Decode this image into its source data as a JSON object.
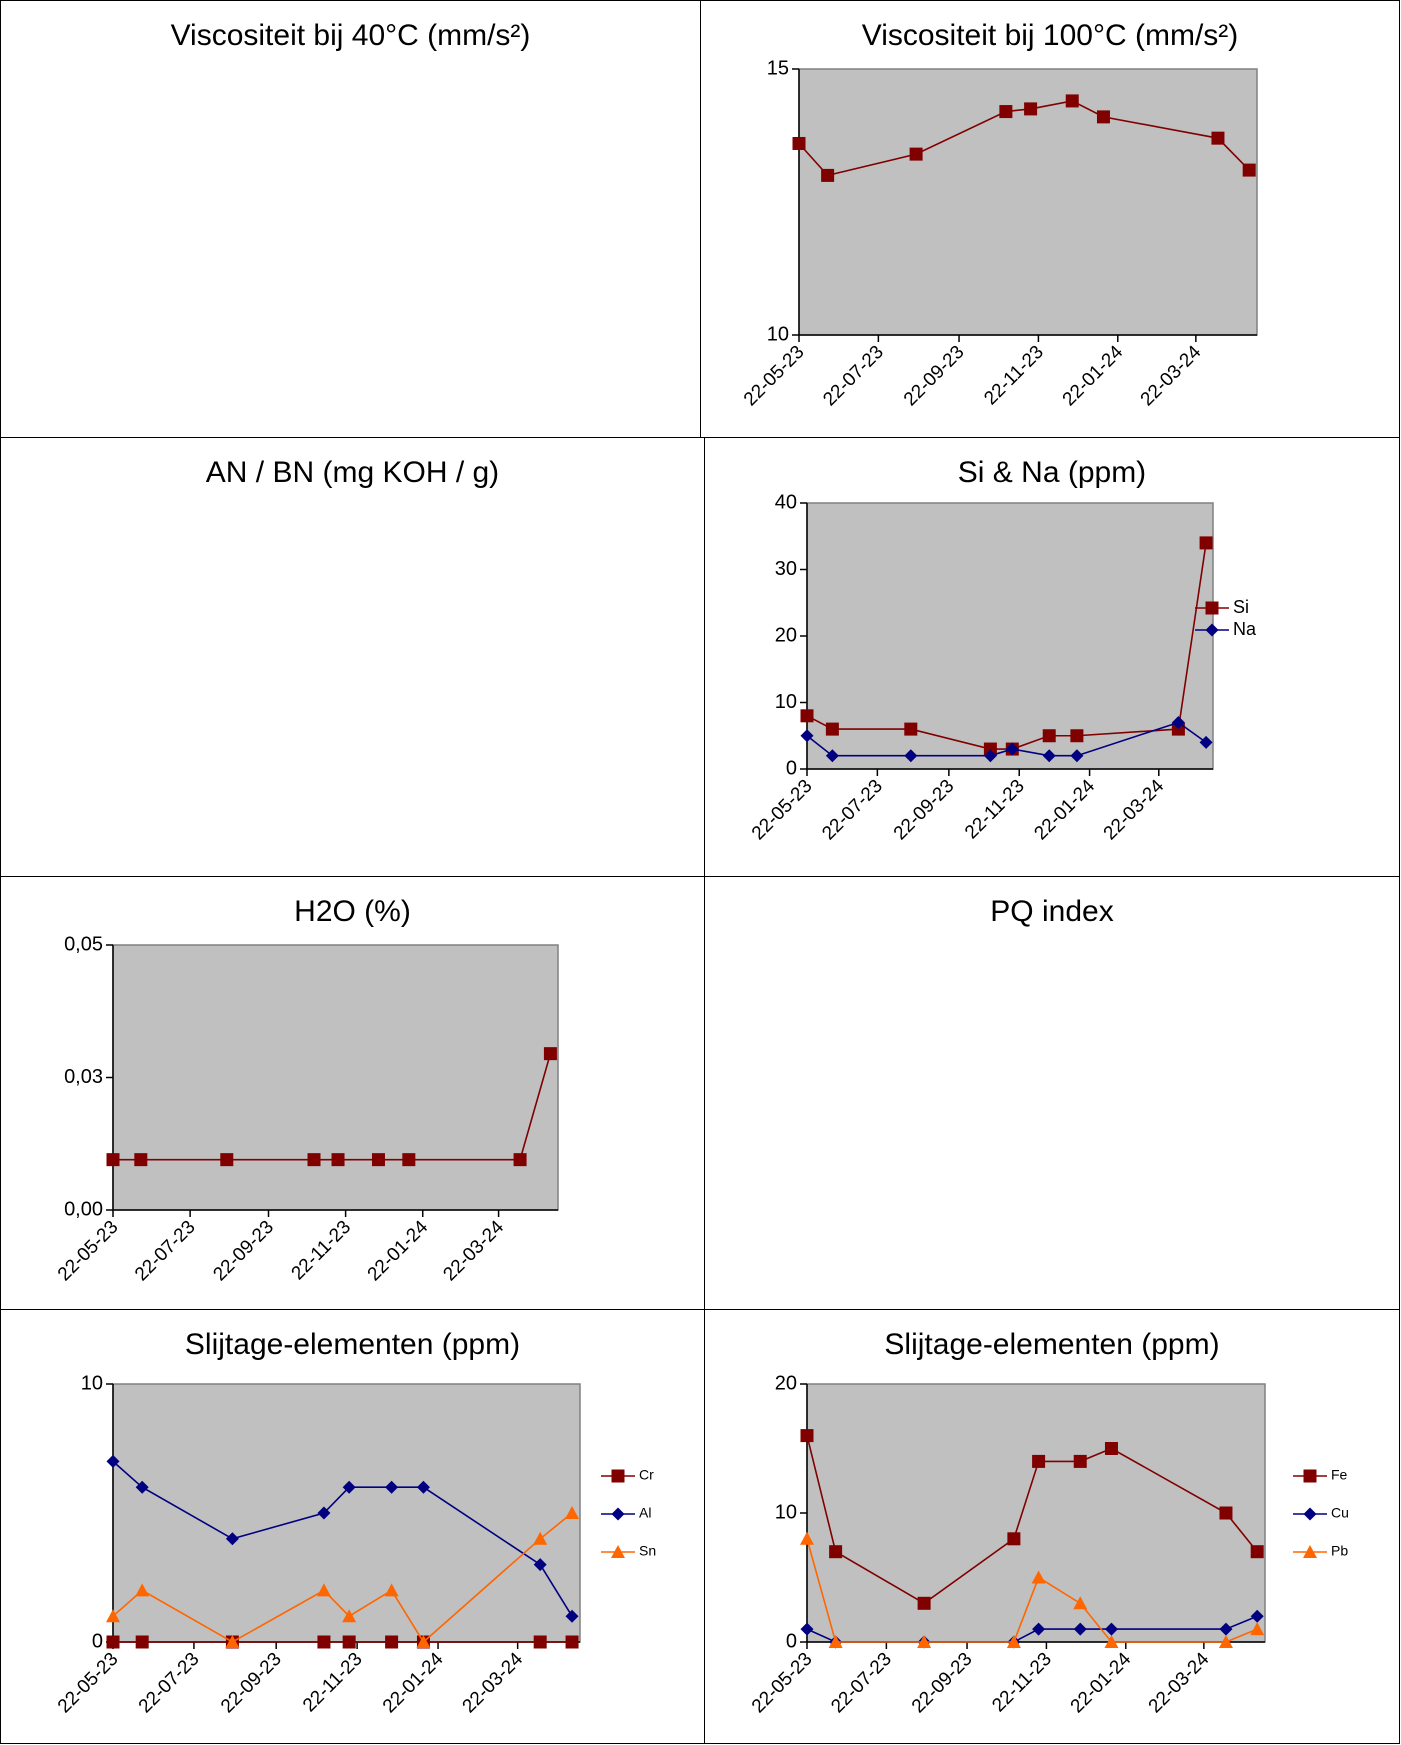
{
  "colors": {
    "dark_red": "#800000",
    "navy": "#000080",
    "orange": "#ff6600",
    "plot_bg": "#c0c0c0"
  },
  "x_ticks": [
    "22-05-23",
    "22-07-23",
    "22-09-23",
    "22-11-23",
    "22-01-24",
    "22-03-24"
  ],
  "charts": {
    "visc40": {
      "title": "Viscositeit bij 40°C (mm/s²)"
    },
    "visc100": {
      "title": "Viscositeit bij 100°C (mm/s²)"
    },
    "anbn": {
      "title": "AN / BN (mg KOH / g)"
    },
    "sina": {
      "title": "Si & Na (ppm)"
    },
    "h2o": {
      "title": "H2O (%)"
    },
    "pq": {
      "title": "PQ index"
    },
    "wear1": {
      "title": "Slijtage-elementen (ppm)"
    },
    "wear2": {
      "title": "Slijtage-elementen (ppm)"
    }
  },
  "chart_data": [
    {
      "id": "visc100",
      "type": "line",
      "title": "Viscositeit bij 100°C (mm/s²)",
      "x_type": "date",
      "xlim": [
        "2023-05-22",
        "2024-05-08"
      ],
      "ylim": [
        10,
        15
      ],
      "yticks": [
        "10",
        "15"
      ],
      "ytick_values": [
        10,
        15
      ],
      "xticks": [
        "22-05-23",
        "22-07-23",
        "22-09-23",
        "22-11-23",
        "22-01-24",
        "22-03-24"
      ],
      "legend": "none",
      "grid": false,
      "series": [
        {
          "color": "#800000",
          "marker": "square",
          "x": [
            "2023-05-22",
            "2023-06-13",
            "2023-08-20",
            "2023-10-28",
            "2023-11-16",
            "2023-12-18",
            "2024-01-11",
            "2024-04-08",
            "2024-05-02"
          ],
          "values": [
            13.6,
            13.0,
            13.4,
            14.2,
            14.25,
            14.4,
            14.1,
            13.7,
            13.1
          ]
        }
      ]
    },
    {
      "id": "sina",
      "type": "line",
      "title": "Si & Na (ppm)",
      "x_type": "date",
      "xlim": [
        "2023-05-22",
        "2024-05-08"
      ],
      "ylim": [
        0,
        40
      ],
      "yticks": [
        "0",
        "10",
        "20",
        "30",
        "40"
      ],
      "ytick_values": [
        0,
        10,
        20,
        30,
        40
      ],
      "xticks": [
        "22-05-23",
        "22-07-23",
        "22-09-23",
        "22-11-23",
        "22-01-24",
        "22-03-24"
      ],
      "legend": "right",
      "grid": false,
      "series": [
        {
          "name": "Si",
          "color": "#800000",
          "marker": "square",
          "x": [
            "2023-05-22",
            "2023-06-13",
            "2023-08-20",
            "2023-10-28",
            "2023-11-16",
            "2023-12-18",
            "2024-01-11",
            "2024-04-08",
            "2024-05-02"
          ],
          "values": [
            8,
            6,
            6,
            3,
            3,
            5,
            5,
            6,
            34
          ]
        },
        {
          "name": "Na",
          "color": "#000080",
          "marker": "diamond",
          "x": [
            "2023-05-22",
            "2023-06-13",
            "2023-08-20",
            "2023-10-28",
            "2023-11-16",
            "2023-12-18",
            "2024-01-11",
            "2024-04-08",
            "2024-05-02"
          ],
          "values": [
            5,
            2,
            2,
            2,
            3,
            2,
            2,
            7,
            4
          ]
        }
      ]
    },
    {
      "id": "h2o",
      "type": "line",
      "title": "H2O (%)",
      "x_type": "date",
      "xlim": [
        "2023-05-22",
        "2024-05-08"
      ],
      "ylim": [
        0,
        0.05
      ],
      "yticks": [
        "0,00",
        "0,03",
        "0,05"
      ],
      "ytick_values": [
        0,
        0.025,
        0.05
      ],
      "xticks": [
        "22-05-23",
        "22-07-23",
        "22-09-23",
        "22-11-23",
        "22-01-24",
        "22-03-24"
      ],
      "legend": "none",
      "grid": false,
      "series": [
        {
          "color": "#800000",
          "marker": "square",
          "x": [
            "2023-05-22",
            "2023-06-13",
            "2023-08-20",
            "2023-10-28",
            "2023-11-16",
            "2023-12-18",
            "2024-01-11",
            "2024-04-08",
            "2024-05-02"
          ],
          "values": [
            0.0095,
            0.0095,
            0.0095,
            0.0095,
            0.0095,
            0.0095,
            0.0095,
            0.0095,
            0.0295
          ]
        }
      ]
    },
    {
      "id": "wear1",
      "type": "line",
      "title": "Slijtage-elementen (ppm)",
      "x_type": "date",
      "xlim": [
        "2023-05-22",
        "2024-05-08"
      ],
      "ylim": [
        0,
        10
      ],
      "yticks": [
        "0",
        "10"
      ],
      "ytick_values": [
        0,
        10
      ],
      "xticks": [
        "22-05-23",
        "22-07-23",
        "22-09-23",
        "22-11-23",
        "22-01-24",
        "22-03-24"
      ],
      "legend": "right",
      "grid": false,
      "series": [
        {
          "name": "Cr",
          "color": "#800000",
          "marker": "square",
          "x": [
            "2023-05-22",
            "2023-06-13",
            "2023-08-20",
            "2023-10-28",
            "2023-11-16",
            "2023-12-18",
            "2024-01-11",
            "2024-04-08",
            "2024-05-02"
          ],
          "values": [
            0,
            0,
            0,
            0,
            0,
            0,
            0,
            0,
            0
          ]
        },
        {
          "name": "Al",
          "color": "#000080",
          "marker": "diamond",
          "x": [
            "2023-05-22",
            "2023-06-13",
            "2023-08-20",
            "2023-10-28",
            "2023-11-16",
            "2023-12-18",
            "2024-01-11",
            "2024-04-08",
            "2024-05-02"
          ],
          "values": [
            7,
            6,
            4,
            5,
            6,
            6,
            6,
            3,
            1
          ]
        },
        {
          "name": "Sn",
          "color": "#ff6600",
          "marker": "triangle",
          "x": [
            "2023-05-22",
            "2023-06-13",
            "2023-08-20",
            "2023-10-28",
            "2023-11-16",
            "2023-12-18",
            "2024-01-11",
            "2024-04-08",
            "2024-05-02"
          ],
          "values": [
            1,
            2,
            0,
            2,
            1,
            2,
            0,
            4,
            5
          ]
        }
      ]
    },
    {
      "id": "wear2",
      "type": "line",
      "title": "Slijtage-elementen (ppm)",
      "x_type": "date",
      "xlim": [
        "2023-05-22",
        "2024-05-08"
      ],
      "ylim": [
        0,
        20
      ],
      "yticks": [
        "0",
        "10",
        "20"
      ],
      "ytick_values": [
        0,
        10,
        20
      ],
      "xticks": [
        "22-05-23",
        "22-07-23",
        "22-09-23",
        "22-11-23",
        "22-01-24",
        "22-03-24"
      ],
      "legend": "right",
      "grid": false,
      "series": [
        {
          "name": "Fe",
          "color": "#800000",
          "marker": "square",
          "x": [
            "2023-05-22",
            "2023-06-13",
            "2023-08-20",
            "2023-10-28",
            "2023-11-16",
            "2023-12-18",
            "2024-01-11",
            "2024-04-08",
            "2024-05-02"
          ],
          "values": [
            16,
            7,
            3,
            8,
            14,
            14,
            15,
            10,
            7
          ]
        },
        {
          "name": "Cu",
          "color": "#000080",
          "marker": "diamond",
          "x": [
            "2023-05-22",
            "2023-06-13",
            "2023-08-20",
            "2023-10-28",
            "2023-11-16",
            "2023-12-18",
            "2024-01-11",
            "2024-04-08",
            "2024-05-02"
          ],
          "values": [
            1,
            0,
            0,
            0,
            1,
            1,
            1,
            1,
            2
          ]
        },
        {
          "name": "Pb",
          "color": "#ff6600",
          "marker": "triangle",
          "x": [
            "2023-05-22",
            "2023-06-13",
            "2023-08-20",
            "2023-10-28",
            "2023-11-16",
            "2023-12-18",
            "2024-01-11",
            "2024-04-08",
            "2024-05-02"
          ],
          "values": [
            8,
            0,
            0,
            0,
            5,
            3,
            0,
            0,
            1
          ]
        }
      ]
    }
  ]
}
